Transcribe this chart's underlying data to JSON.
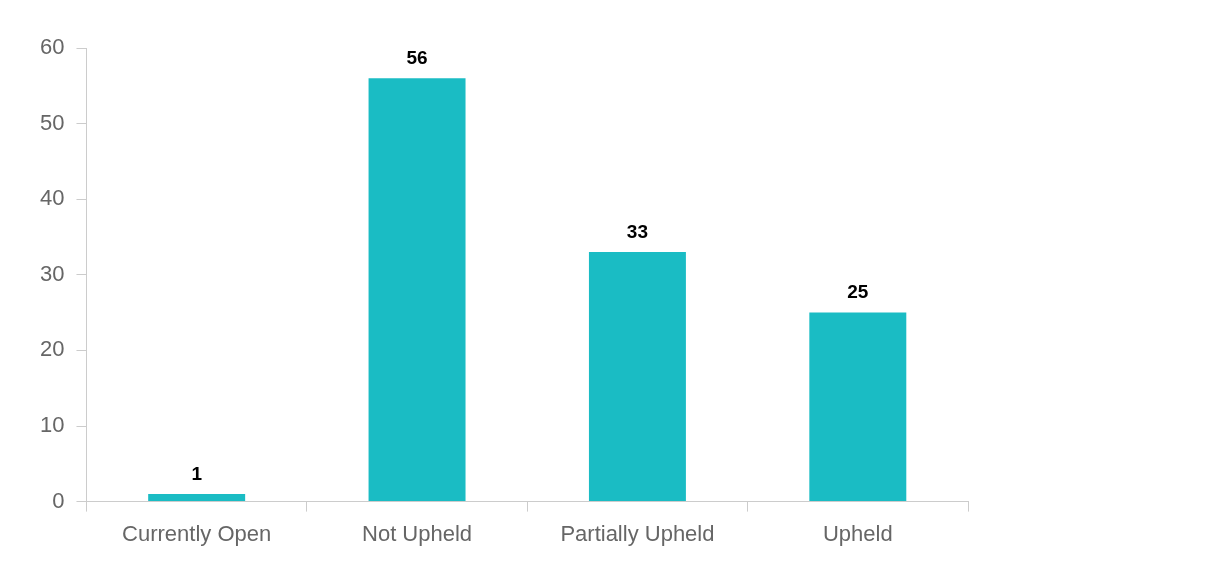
{
  "chart_data": {
    "type": "bar",
    "categories": [
      "Currently Open",
      "Not Upheld",
      "Partially Upheld",
      "Upheld"
    ],
    "values": [
      1,
      56,
      33,
      25
    ],
    "color": "#1abcc4",
    "ylim": [
      0,
      60
    ],
    "yticks": [
      0,
      10,
      20,
      30,
      40,
      50,
      60
    ],
    "grid": false,
    "legend": false,
    "data_labels": true
  }
}
